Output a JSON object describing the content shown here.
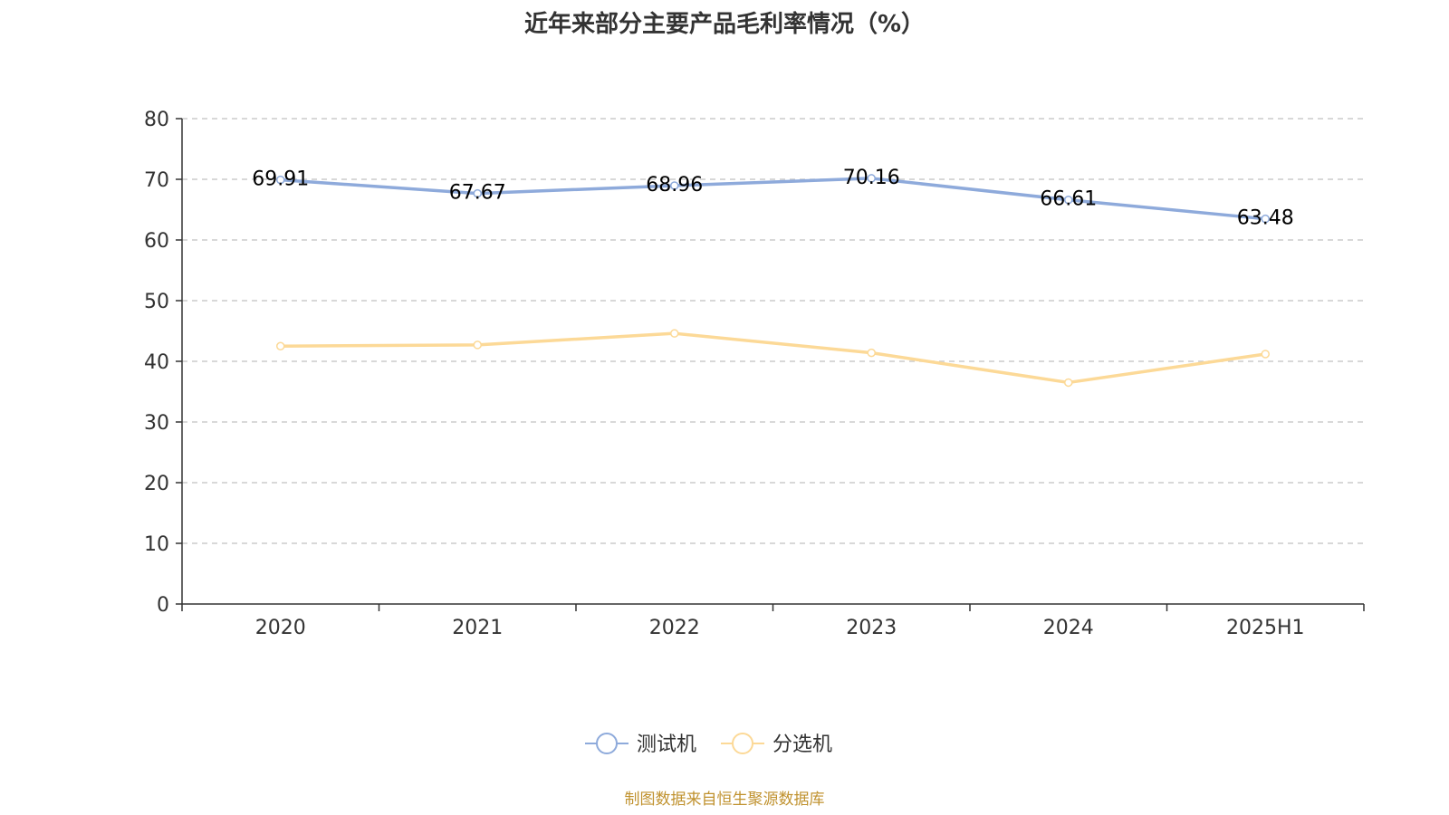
{
  "title": "近年来部分主要产品毛利率情况（%）",
  "source": "制图数据来自恒生聚源数据库",
  "colors": {
    "series_0": "#8eaadb",
    "series_1": "#fcd997",
    "axis": "#333333",
    "grid": "#cccccc"
  },
  "chart_data": {
    "type": "line",
    "title": "近年来部分主要产品毛利率情况（%）",
    "categories": [
      "2020",
      "2021",
      "2022",
      "2023",
      "2024",
      "2025H1"
    ],
    "series": [
      {
        "name": "测试机",
        "values": [
          69.91,
          67.67,
          68.96,
          70.16,
          66.61,
          63.48
        ],
        "show_labels": true
      },
      {
        "name": "分选机",
        "values": [
          42.5,
          42.7,
          44.6,
          41.4,
          36.5,
          41.2
        ],
        "show_labels": false
      }
    ],
    "yticks": [
      0,
      10,
      20,
      30,
      40,
      50,
      60,
      70,
      80
    ],
    "ylim": [
      0,
      80
    ],
    "grid": true,
    "legend_position": "bottom-center"
  }
}
